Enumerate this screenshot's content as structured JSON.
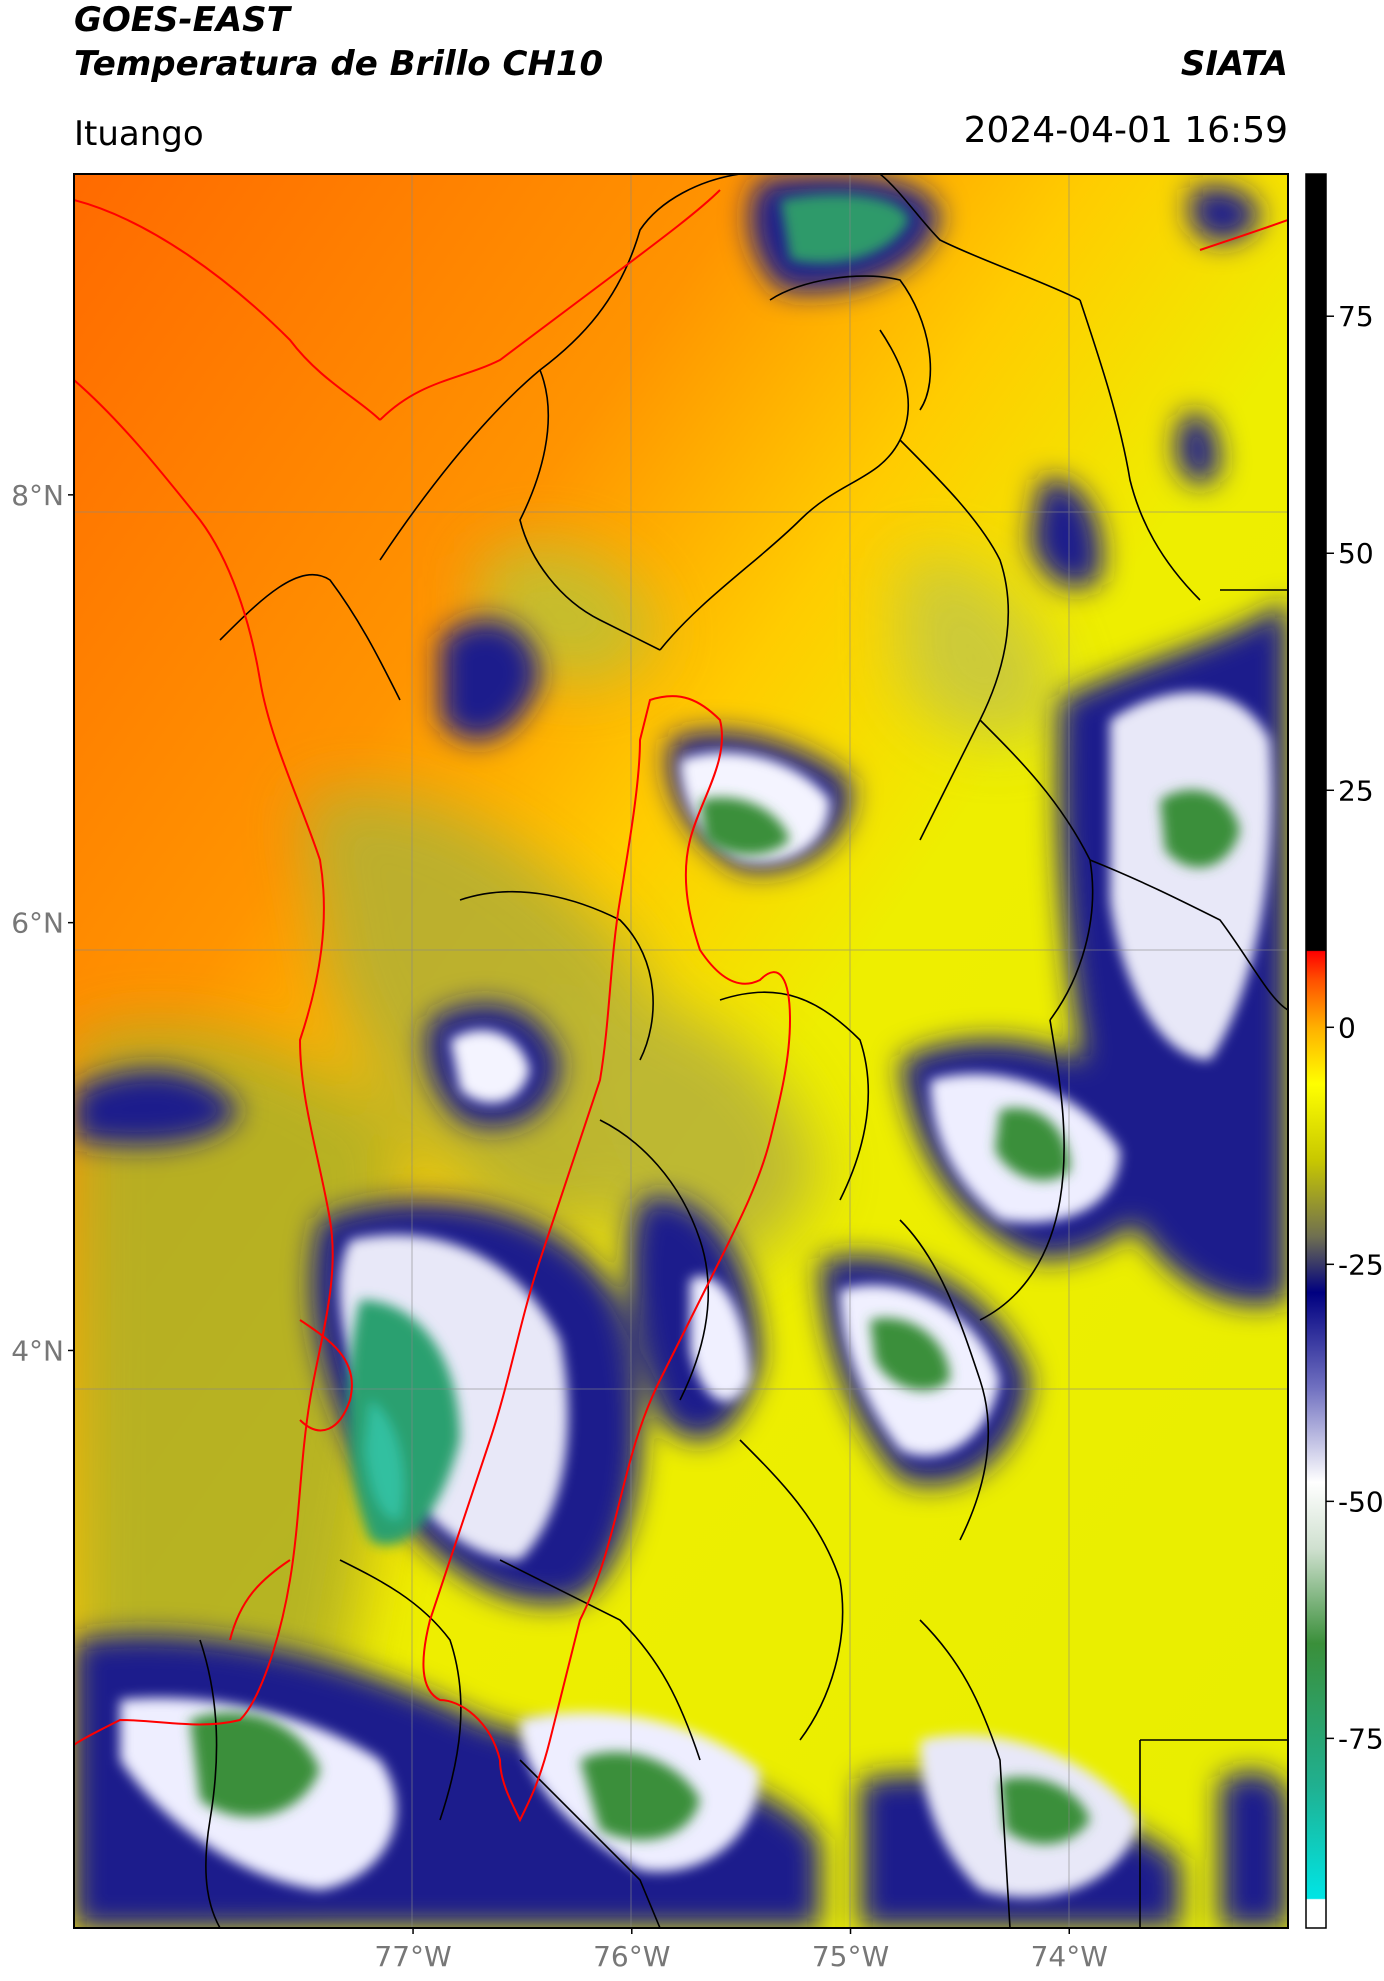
{
  "header": {
    "satellite": "GOES-EAST",
    "product": "Temperatura de Brillo CH10",
    "organization": "SIATA",
    "location": "Ituango",
    "datetime": "2024-04-01 16:59"
  },
  "map": {
    "lat_range": [
      1.3,
      9.5
    ],
    "lon_range": [
      -78.55,
      -73.0
    ],
    "lat_ticks": [
      {
        "value": 8,
        "label": "8°N"
      },
      {
        "value": 6,
        "label": "6°N"
      },
      {
        "value": 4,
        "label": "4°N"
      }
    ],
    "lon_ticks": [
      {
        "value": -77,
        "label": "77°W"
      },
      {
        "value": -76,
        "label": "76°W"
      },
      {
        "value": -75,
        "label": "75°W"
      },
      {
        "value": -74,
        "label": "74°W"
      }
    ],
    "colors": {
      "ocean": "#ff7a00",
      "warm": "#ffd700",
      "land": "#e6ee00",
      "olive": "#a8a832",
      "cloud_blue": "#1a1a8c",
      "cloud_white": "#ffffff",
      "cloud_green": "#3a8f3a",
      "outline_region": "#ff0000",
      "outline_admin": "#000000"
    }
  },
  "colorbar": {
    "range": [
      -95,
      90
    ],
    "ticks": [
      {
        "value": 75,
        "label": "75"
      },
      {
        "value": 50,
        "label": "50"
      },
      {
        "value": 25,
        "label": "25"
      },
      {
        "value": 0,
        "label": "0"
      },
      {
        "value": -25,
        "label": "-25"
      },
      {
        "value": -50,
        "label": "-50"
      },
      {
        "value": -75,
        "label": "-75"
      }
    ],
    "stops": [
      {
        "v": -95,
        "c": "#ffffff"
      },
      {
        "v": -92,
        "c": "#ffffff"
      },
      {
        "v": -91.9,
        "c": "#00e5e5"
      },
      {
        "v": -80,
        "c": "#20b090"
      },
      {
        "v": -65,
        "c": "#3a8f3a"
      },
      {
        "v": -55,
        "c": "#cfe0cf"
      },
      {
        "v": -48,
        "c": "#ffffff"
      },
      {
        "v": -38,
        "c": "#7070c0"
      },
      {
        "v": -28,
        "c": "#000080"
      },
      {
        "v": -22,
        "c": "#707050"
      },
      {
        "v": -14,
        "c": "#c8c800"
      },
      {
        "v": -6,
        "c": "#ffff00"
      },
      {
        "v": 0,
        "c": "#ffb000"
      },
      {
        "v": 5,
        "c": "#ff5000"
      },
      {
        "v": 8,
        "c": "#ff0000"
      },
      {
        "v": 8.1,
        "c": "#000000"
      },
      {
        "v": 90,
        "c": "#000000"
      }
    ]
  }
}
